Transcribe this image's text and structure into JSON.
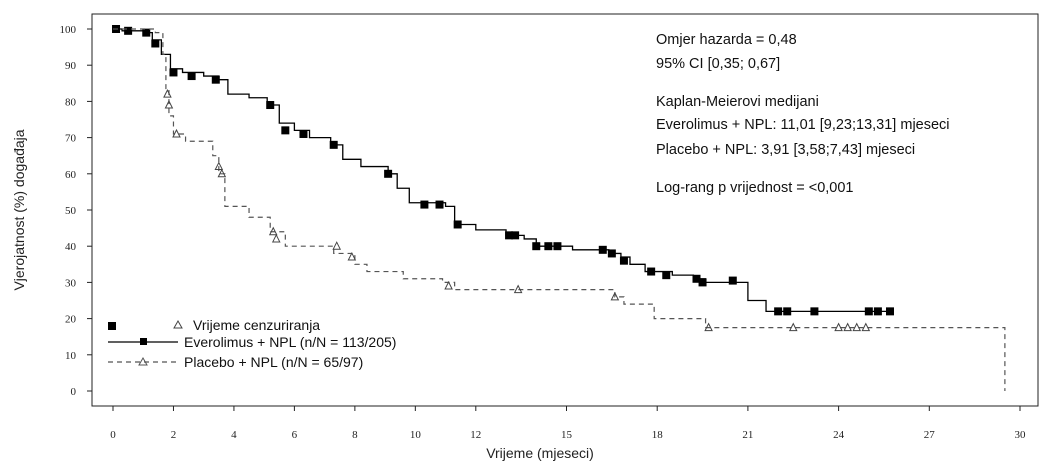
{
  "chart_data": {
    "type": "line",
    "title": "",
    "xlabel": "Vrijeme (mjeseci)",
    "ylabel": "Vjerojatnost (%) događaja",
    "xlim": [
      0,
      30
    ],
    "ylim": [
      0,
      100
    ],
    "x_ticks": [
      "0",
      "2",
      "4",
      "6",
      "8",
      "10",
      "12",
      "15",
      "18",
      "21",
      "24",
      "27",
      "30"
    ],
    "y_ticks": [
      "0",
      "10",
      "20",
      "30",
      "40",
      "50",
      "60",
      "70",
      "80",
      "90",
      "100"
    ],
    "grid": false,
    "annotations": [
      "Omjer hazarda = 0,48",
      "95% CI [0,35; 0,67]",
      "Kaplan-Meierovi medijani",
      "Everolimus + NPL: 11,01 [9,23;13,31] mjeseci",
      "Placebo + NPL: 3,91 [3,58;7,43] mjeseci",
      "Log-rang p vrijednost = <0,001"
    ],
    "legend": {
      "placement": "bottom-left",
      "censor_label": "Vrijeme cenzuriranja",
      "entries": [
        "Everolimus + NPL (n/N = 113/205)",
        "Placebo + NPL (n/N = 65/97)"
      ]
    },
    "series": [
      {
        "name": "Everolimus + NPL (n/N = 113/205)",
        "style": "solid",
        "marker": "square",
        "color": "#000000",
        "steps": [
          [
            0,
            100
          ],
          [
            0.3,
            99.5
          ],
          [
            1.0,
            99
          ],
          [
            1.3,
            97
          ],
          [
            1.6,
            93
          ],
          [
            1.9,
            89
          ],
          [
            2.3,
            88
          ],
          [
            3.0,
            87
          ],
          [
            3.5,
            86
          ],
          [
            3.8,
            82
          ],
          [
            4.5,
            81
          ],
          [
            5.1,
            79
          ],
          [
            5.5,
            74
          ],
          [
            6.0,
            72
          ],
          [
            6.5,
            70
          ],
          [
            7.2,
            68
          ],
          [
            7.6,
            64
          ],
          [
            8.2,
            62
          ],
          [
            9.1,
            60
          ],
          [
            9.4,
            56
          ],
          [
            9.8,
            52
          ],
          [
            11.0,
            51
          ],
          [
            11.3,
            46
          ],
          [
            12.0,
            44.5
          ],
          [
            13.0,
            43
          ],
          [
            13.6,
            42
          ],
          [
            14.0,
            40
          ],
          [
            15.2,
            39
          ],
          [
            16.4,
            38
          ],
          [
            16.8,
            37
          ],
          [
            17.1,
            35
          ],
          [
            17.6,
            33
          ],
          [
            18.5,
            32
          ],
          [
            19.2,
            31
          ],
          [
            19.6,
            30
          ],
          [
            21.0,
            25
          ],
          [
            21.6,
            22
          ],
          [
            25.8,
            22
          ]
        ],
        "censor_points": [
          [
            0.1,
            100
          ],
          [
            0.5,
            99.5
          ],
          [
            1.1,
            99
          ],
          [
            1.4,
            96
          ],
          [
            2.0,
            88
          ],
          [
            2.6,
            87
          ],
          [
            3.4,
            86
          ],
          [
            5.2,
            79
          ],
          [
            5.7,
            72
          ],
          [
            6.3,
            71
          ],
          [
            7.3,
            68
          ],
          [
            9.1,
            60
          ],
          [
            10.3,
            51.5
          ],
          [
            10.8,
            51.5
          ],
          [
            11.4,
            46
          ],
          [
            13.1,
            43
          ],
          [
            13.3,
            43
          ],
          [
            14.0,
            40
          ],
          [
            14.4,
            40
          ],
          [
            14.7,
            40
          ],
          [
            16.2,
            39
          ],
          [
            16.5,
            38
          ],
          [
            16.9,
            36
          ],
          [
            17.8,
            33
          ],
          [
            18.3,
            32
          ],
          [
            19.3,
            31
          ],
          [
            19.5,
            30
          ],
          [
            20.5,
            30.5
          ],
          [
            22.0,
            22
          ],
          [
            22.3,
            22
          ],
          [
            23.2,
            22
          ],
          [
            25.0,
            22
          ],
          [
            25.3,
            22
          ],
          [
            25.7,
            22
          ]
        ]
      },
      {
        "name": "Placebo + NPL (n/N = 65/97)",
        "style": "dashed",
        "marker": "triangle",
        "color": "#555555",
        "steps": [
          [
            0,
            100
          ],
          [
            1.4,
            99
          ],
          [
            1.65,
            93
          ],
          [
            1.75,
            83
          ],
          [
            1.85,
            76
          ],
          [
            2.0,
            71
          ],
          [
            2.4,
            69
          ],
          [
            3.3,
            65
          ],
          [
            3.5,
            60
          ],
          [
            3.7,
            51
          ],
          [
            4.5,
            48
          ],
          [
            5.2,
            44
          ],
          [
            5.7,
            40
          ],
          [
            7.3,
            38
          ],
          [
            8.0,
            35
          ],
          [
            8.4,
            33
          ],
          [
            9.6,
            31
          ],
          [
            10.9,
            30
          ],
          [
            11.3,
            28
          ],
          [
            16.6,
            26
          ],
          [
            16.9,
            24
          ],
          [
            17.9,
            20
          ],
          [
            19.6,
            17.5
          ],
          [
            29.5,
            17.5
          ],
          [
            29.5,
            0
          ]
        ],
        "censor_points": [
          [
            1.8,
            82
          ],
          [
            1.85,
            79
          ],
          [
            2.1,
            71
          ],
          [
            3.5,
            62
          ],
          [
            3.6,
            60
          ],
          [
            5.3,
            44
          ],
          [
            5.4,
            42
          ],
          [
            7.4,
            40
          ],
          [
            7.9,
            37
          ],
          [
            11.1,
            29
          ],
          [
            13.4,
            28
          ],
          [
            16.6,
            26
          ],
          [
            19.7,
            17.5
          ],
          [
            22.5,
            17.5
          ],
          [
            24.0,
            17.5
          ],
          [
            24.3,
            17.5
          ],
          [
            24.6,
            17.5
          ],
          [
            24.9,
            17.5
          ]
        ]
      }
    ]
  }
}
